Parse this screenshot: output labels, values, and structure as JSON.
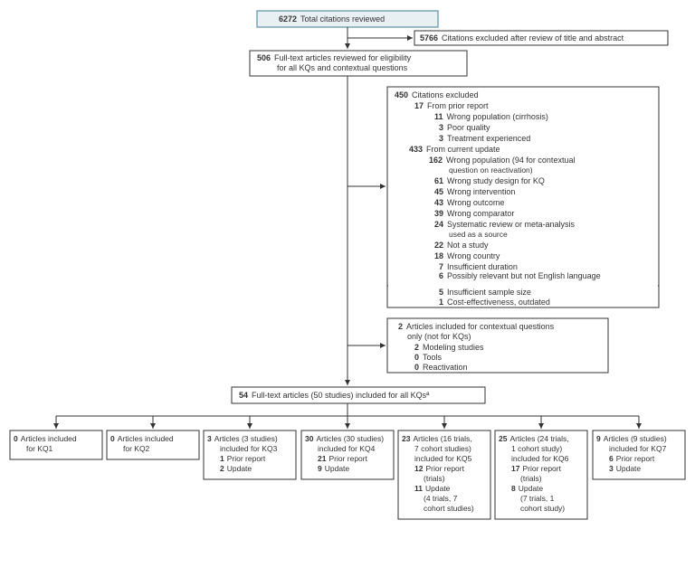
{
  "diagram": {
    "type": "flowchart",
    "background_color": "#ffffff",
    "box_stroke": "#333333",
    "box_fill": "#ffffff",
    "top_box_fill": "#e8f0f3",
    "top_box_stroke": "#7ba5b5",
    "line_color": "#333333",
    "fontsize_main": 9,
    "fontsize_sub": 8,
    "nodes": {
      "total": {
        "n": "6272",
        "label": "Total citations reviewed"
      },
      "excl1": {
        "n": "5766",
        "label": "Citations excluded after review of title and abstract"
      },
      "fulltext": {
        "n": "506",
        "label1": "Full-text articles reviewed for eligibility",
        "label2": "for all KQs and contextual questions"
      },
      "excl2": {
        "n": "450",
        "label": "Citations excluded",
        "prior_n": "17",
        "prior_label": "From prior report",
        "prior_items": [
          {
            "n": "11",
            "label": "Wrong population (cirrhosis)"
          },
          {
            "n": "3",
            "label": "Poor quality"
          },
          {
            "n": "3",
            "label": "Treatment experienced"
          }
        ],
        "current_n": "433",
        "current_label": "From current update",
        "current_items": [
          {
            "n": "162",
            "label": "Wrong population (94 for contextual",
            "label2": "question on reactivation)"
          },
          {
            "n": "61",
            "label": "Wrong study design for KQ"
          },
          {
            "n": "45",
            "label": "Wrong intervention"
          },
          {
            "n": "43",
            "label": "Wrong outcome"
          },
          {
            "n": "39",
            "label": "Wrong comparator"
          },
          {
            "n": "24",
            "label": "Systematic review or meta-analysis",
            "label2": "used as a source"
          },
          {
            "n": "22",
            "label": "Not a study"
          },
          {
            "n": "18",
            "label": "Wrong country"
          },
          {
            "n": "7",
            "label": "Insufficient duration"
          },
          {
            "n": "6",
            "label": "Possibly relevant but not English language"
          },
          {
            "n": "5",
            "label": "Insufficient sample size"
          },
          {
            "n": "1",
            "label": "Cost-effectiveness, outdated"
          }
        ]
      },
      "contextual": {
        "n": "2",
        "label1": "Articles included for contextual questions",
        "label2": "only (not for KQs)",
        "items": [
          {
            "n": "2",
            "label": "Modeling studies"
          },
          {
            "n": "0",
            "label": "Tools"
          },
          {
            "n": "0",
            "label": "Reactivation"
          }
        ]
      },
      "included": {
        "n": "54",
        "label": "Full-text articles (50 studies) included for all KQsª"
      },
      "kq": [
        {
          "n": "0",
          "l1": "Articles included",
          "l2": "for KQ1"
        },
        {
          "n": "0",
          "l1": "Articles included",
          "l2": "for KQ2"
        },
        {
          "n": "3",
          "l1": "Articles (3 studies)",
          "l2": "included for KQ3",
          "sub": [
            {
              "n": "1",
              "l": "Prior report"
            },
            {
              "n": "2",
              "l": "Update"
            }
          ]
        },
        {
          "n": "30",
          "l1": "Articles (30 studies)",
          "l2": "included for KQ4",
          "sub": [
            {
              "n": "21",
              "l": "Prior report"
            },
            {
              "n": "9",
              "l": "Update"
            }
          ]
        },
        {
          "n": "23",
          "l1": "Articles (16 trials,",
          "l2": "7 cohort studies)",
          "l3": "included for KQ5",
          "sub": [
            {
              "n": "12",
              "l": "Prior report",
              "l2": "(trials)"
            },
            {
              "n": "11",
              "l": "Update",
              "l2": "(4 trials, 7",
              "l3": "cohort studies)"
            }
          ]
        },
        {
          "n": "25",
          "l1": "Articles (24 trials,",
          "l2": "1 cohort study)",
          "l3": "included for KQ6",
          "sub": [
            {
              "n": "17",
              "l": "Prior report",
              "l2": "(trials)"
            },
            {
              "n": "8",
              "l": "Update",
              "l2": "(7 trials, 1",
              "l3": "cohort study)"
            }
          ]
        },
        {
          "n": "9",
          "l1": "Articles (9 studies)",
          "l2": "included for KQ7",
          "sub": [
            {
              "n": "6",
              "l": "Prior report"
            },
            {
              "n": "3",
              "l": "Update"
            }
          ]
        }
      ]
    }
  }
}
